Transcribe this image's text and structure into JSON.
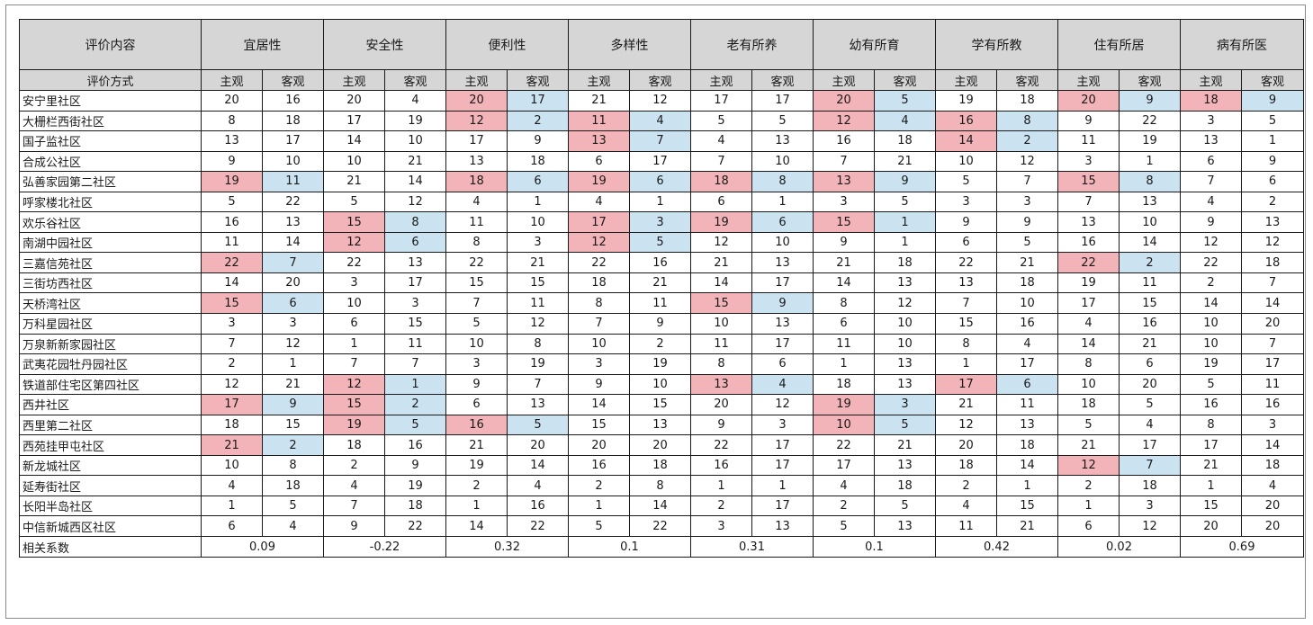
{
  "header": {
    "content_label": "评价内容",
    "method_label": "评价方式",
    "subjective": "主观",
    "objective": "客观",
    "categories": [
      "宜居性",
      "安全性",
      "便利性",
      "多样性",
      "老有所养",
      "幼有所育",
      "学有所教",
      "住有所居",
      "病有所医"
    ]
  },
  "rows": [
    {
      "name": "安宁里社区",
      "v": [
        20,
        16,
        20,
        4,
        20,
        17,
        21,
        12,
        17,
        17,
        20,
        5,
        19,
        18,
        20,
        9,
        18,
        9
      ],
      "hl": [
        2,
        5,
        7,
        8
      ]
    },
    {
      "name": "大栅栏西街社区",
      "v": [
        8,
        18,
        17,
        19,
        12,
        2,
        11,
        4,
        5,
        5,
        12,
        4,
        16,
        8,
        9,
        22,
        3,
        5
      ],
      "hl": [
        2,
        3,
        5,
        6
      ]
    },
    {
      "name": "国子监社区",
      "v": [
        13,
        17,
        14,
        10,
        17,
        9,
        13,
        7,
        4,
        13,
        16,
        18,
        14,
        2,
        11,
        19,
        13,
        1
      ],
      "hl": [
        3,
        6
      ]
    },
    {
      "name": "合成公社区",
      "v": [
        9,
        10,
        10,
        21,
        13,
        18,
        6,
        17,
        7,
        10,
        7,
        21,
        10,
        12,
        3,
        1,
        6,
        9
      ],
      "hl": []
    },
    {
      "name": "弘善家园第二社区",
      "v": [
        19,
        11,
        21,
        14,
        18,
        6,
        19,
        6,
        18,
        8,
        13,
        9,
        5,
        7,
        15,
        8,
        7,
        6
      ],
      "hl": [
        0,
        2,
        3,
        4,
        5,
        7
      ]
    },
    {
      "name": "呼家楼北社区",
      "v": [
        5,
        22,
        5,
        12,
        4,
        1,
        4,
        1,
        6,
        1,
        3,
        5,
        3,
        3,
        7,
        13,
        4,
        2
      ],
      "hl": []
    },
    {
      "name": "欢乐谷社区",
      "v": [
        16,
        13,
        15,
        8,
        11,
        10,
        17,
        3,
        19,
        6,
        15,
        1,
        9,
        9,
        13,
        10,
        9,
        13
      ],
      "hl": [
        1,
        3,
        4,
        5
      ]
    },
    {
      "name": "南湖中园社区",
      "v": [
        11,
        14,
        12,
        6,
        8,
        3,
        12,
        5,
        12,
        10,
        9,
        1,
        6,
        5,
        16,
        14,
        12,
        12
      ],
      "hl": [
        1,
        3
      ]
    },
    {
      "name": "三嘉信苑社区",
      "v": [
        22,
        7,
        22,
        13,
        22,
        21,
        22,
        16,
        21,
        13,
        21,
        18,
        22,
        21,
        22,
        2,
        22,
        18
      ],
      "hl": [
        0,
        7
      ]
    },
    {
      "name": "三街坊西社区",
      "v": [
        14,
        20,
        3,
        17,
        15,
        15,
        18,
        21,
        14,
        17,
        14,
        13,
        13,
        18,
        19,
        11,
        2,
        7
      ],
      "hl": []
    },
    {
      "name": "天桥湾社区",
      "v": [
        15,
        6,
        10,
        3,
        7,
        11,
        8,
        11,
        15,
        9,
        8,
        12,
        7,
        10,
        17,
        15,
        14,
        14
      ],
      "hl": [
        0,
        4
      ]
    },
    {
      "name": "万科星园社区",
      "v": [
        3,
        3,
        6,
        15,
        5,
        12,
        7,
        9,
        10,
        13,
        6,
        10,
        15,
        16,
        4,
        16,
        10,
        20
      ],
      "hl": []
    },
    {
      "name": "万泉新新家园社区",
      "v": [
        7,
        12,
        1,
        11,
        10,
        8,
        10,
        2,
        11,
        17,
        11,
        10,
        8,
        4,
        14,
        21,
        10,
        7
      ],
      "hl": []
    },
    {
      "name": "武夷花园牡丹园社区",
      "v": [
        2,
        1,
        7,
        7,
        3,
        19,
        3,
        19,
        8,
        6,
        1,
        13,
        1,
        17,
        8,
        6,
        19,
        17
      ],
      "hl": []
    },
    {
      "name": "铁道部住宅区第四社区",
      "v": [
        12,
        21,
        12,
        1,
        9,
        7,
        9,
        10,
        13,
        4,
        18,
        13,
        17,
        6,
        10,
        20,
        5,
        11
      ],
      "hl": [
        1,
        4,
        6
      ]
    },
    {
      "name": "西井社区",
      "v": [
        17,
        9,
        15,
        2,
        6,
        13,
        14,
        15,
        20,
        12,
        19,
        3,
        21,
        11,
        18,
        5,
        16,
        16
      ],
      "hl": [
        0,
        1,
        5
      ]
    },
    {
      "name": "西里第二社区",
      "v": [
        18,
        15,
        19,
        5,
        16,
        5,
        15,
        13,
        9,
        3,
        10,
        5,
        12,
        13,
        5,
        4,
        8,
        3
      ],
      "hl": [
        1,
        2,
        5
      ]
    },
    {
      "name": "西苑挂甲屯社区",
      "v": [
        21,
        2,
        18,
        16,
        21,
        20,
        20,
        20,
        22,
        17,
        22,
        21,
        20,
        18,
        21,
        17,
        17,
        14
      ],
      "hl": [
        0
      ]
    },
    {
      "name": "新龙城社区",
      "v": [
        10,
        8,
        2,
        9,
        19,
        14,
        16,
        18,
        16,
        17,
        17,
        13,
        18,
        14,
        12,
        7,
        21,
        18
      ],
      "hl": [
        7
      ]
    },
    {
      "name": "延寿街社区",
      "v": [
        4,
        18,
        4,
        19,
        2,
        4,
        2,
        8,
        1,
        1,
        4,
        18,
        2,
        1,
        2,
        18,
        1,
        4
      ],
      "hl": []
    },
    {
      "name": "长阳半岛社区",
      "v": [
        1,
        5,
        7,
        18,
        1,
        16,
        1,
        14,
        2,
        17,
        2,
        5,
        4,
        15,
        1,
        3,
        15,
        20
      ],
      "hl": []
    },
    {
      "name": "中信新城西区社区",
      "v": [
        6,
        4,
        9,
        22,
        14,
        22,
        5,
        22,
        3,
        13,
        5,
        13,
        11,
        21,
        6,
        12,
        20,
        20
      ],
      "hl": []
    }
  ],
  "correlation": {
    "label": "相关系数",
    "values": [
      "0.09",
      "-0.22",
      "0.32",
      "0.1",
      "0.31",
      "0.1",
      "0.42",
      "0.02",
      "0.69"
    ]
  },
  "colors": {
    "header_bg": "#d6d6d6",
    "subjective_hl": "#f2b4b8",
    "objective_hl": "#cbe3f1"
  }
}
